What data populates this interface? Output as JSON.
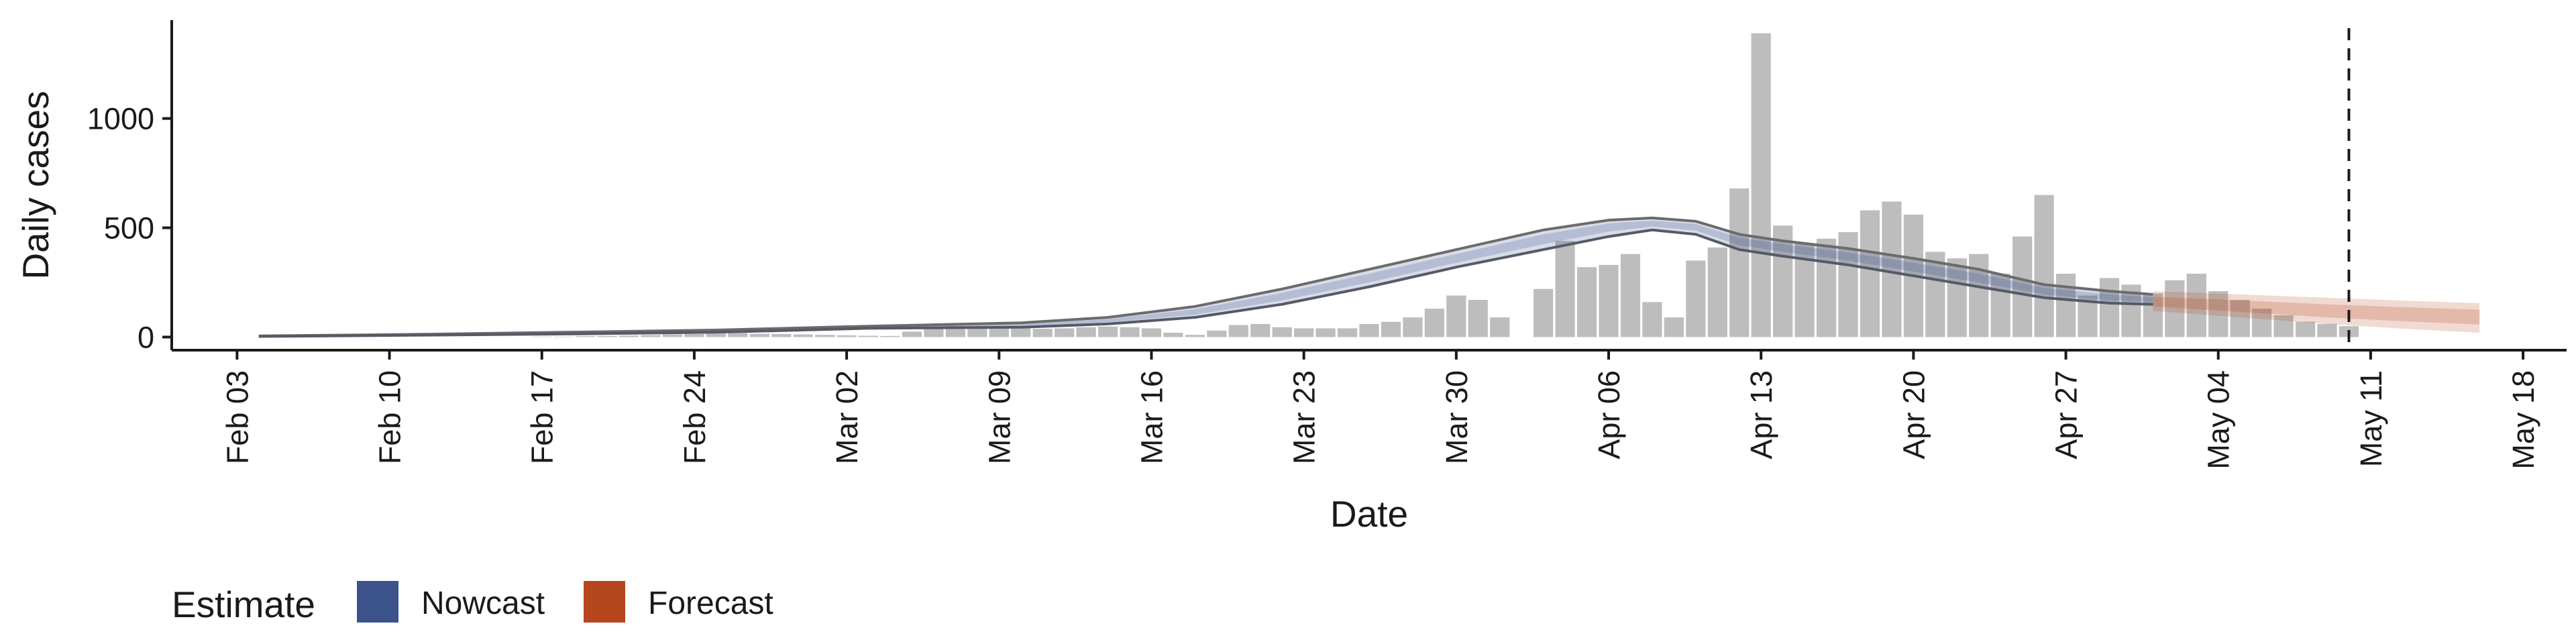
{
  "chart_data": {
    "type": "bar",
    "xlabel": "Date",
    "ylabel": "Daily cases",
    "x_axis": {
      "type": "date",
      "range": [
        "2020-01-31",
        "2020-05-20"
      ],
      "ticks": [
        {
          "date": "2020-02-03",
          "label": "Feb 03"
        },
        {
          "date": "2020-02-10",
          "label": "Feb 10"
        },
        {
          "date": "2020-02-17",
          "label": "Feb 17"
        },
        {
          "date": "2020-02-24",
          "label": "Feb 24"
        },
        {
          "date": "2020-03-02",
          "label": "Mar 02"
        },
        {
          "date": "2020-03-09",
          "label": "Mar 09"
        },
        {
          "date": "2020-03-16",
          "label": "Mar 16"
        },
        {
          "date": "2020-03-23",
          "label": "Mar 23"
        },
        {
          "date": "2020-03-30",
          "label": "Mar 30"
        },
        {
          "date": "2020-04-06",
          "label": "Apr 06"
        },
        {
          "date": "2020-04-13",
          "label": "Apr 13"
        },
        {
          "date": "2020-04-20",
          "label": "Apr 20"
        },
        {
          "date": "2020-04-27",
          "label": "Apr 27"
        },
        {
          "date": "2020-05-04",
          "label": "May 04"
        },
        {
          "date": "2020-05-11",
          "label": "May 11"
        },
        {
          "date": "2020-05-18",
          "label": "May 18"
        }
      ]
    },
    "y_axis": {
      "range": [
        -60,
        1450
      ],
      "ticks": [
        {
          "value": 0,
          "label": "0"
        },
        {
          "value": 500,
          "label": "500"
        },
        {
          "value": 1000,
          "label": "1000"
        }
      ]
    },
    "grid": false,
    "bars": {
      "name": "Daily cases",
      "color": "#bdbdbd",
      "dates": [
        "2020-02-01",
        "2020-02-02",
        "2020-02-03",
        "2020-02-04",
        "2020-02-05",
        "2020-02-06",
        "2020-02-07",
        "2020-02-08",
        "2020-02-09",
        "2020-02-10",
        "2020-02-11",
        "2020-02-12",
        "2020-02-13",
        "2020-02-14",
        "2020-02-15",
        "2020-02-16",
        "2020-02-17",
        "2020-02-18",
        "2020-02-19",
        "2020-02-20",
        "2020-02-21",
        "2020-02-22",
        "2020-02-23",
        "2020-02-24",
        "2020-02-25",
        "2020-02-26",
        "2020-02-27",
        "2020-02-28",
        "2020-02-29",
        "2020-03-01",
        "2020-03-02",
        "2020-03-03",
        "2020-03-04",
        "2020-03-05",
        "2020-03-06",
        "2020-03-07",
        "2020-03-08",
        "2020-03-09",
        "2020-03-10",
        "2020-03-11",
        "2020-03-12",
        "2020-03-13",
        "2020-03-14",
        "2020-03-15",
        "2020-03-16",
        "2020-03-17",
        "2020-03-18",
        "2020-03-19",
        "2020-03-20",
        "2020-03-21",
        "2020-03-22",
        "2020-03-23",
        "2020-03-24",
        "2020-03-25",
        "2020-03-26",
        "2020-03-27",
        "2020-03-28",
        "2020-03-29",
        "2020-03-30",
        "2020-03-31",
        "2020-04-01",
        "2020-04-02",
        "2020-04-03",
        "2020-04-04",
        "2020-04-05",
        "2020-04-06",
        "2020-04-07",
        "2020-04-08",
        "2020-04-09",
        "2020-04-10",
        "2020-04-11",
        "2020-04-12",
        "2020-04-13",
        "2020-04-14",
        "2020-04-15",
        "2020-04-16",
        "2020-04-17",
        "2020-04-18",
        "2020-04-19",
        "2020-04-20",
        "2020-04-21",
        "2020-04-22",
        "2020-04-23",
        "2020-04-24",
        "2020-04-25",
        "2020-04-26",
        "2020-04-27",
        "2020-04-28",
        "2020-04-29",
        "2020-04-30",
        "2020-05-01",
        "2020-05-02",
        "2020-05-03",
        "2020-05-04",
        "2020-05-05",
        "2020-05-06",
        "2020-05-07",
        "2020-05-08",
        "2020-05-09",
        "2020-05-10"
      ],
      "values": [
        0,
        0,
        0,
        0,
        0,
        0,
        0,
        0,
        0,
        0,
        0,
        0,
        0,
        0,
        0,
        0,
        2,
        2,
        4,
        5,
        7,
        9,
        12,
        14,
        16,
        18,
        15,
        14,
        12,
        10,
        8,
        6,
        5,
        25,
        40,
        50,
        48,
        45,
        40,
        38,
        40,
        45,
        48,
        45,
        40,
        20,
        10,
        30,
        55,
        60,
        45,
        40,
        40,
        40,
        60,
        70,
        90,
        130,
        190,
        170,
        90,
        0,
        220,
        440,
        320,
        330,
        380,
        160,
        90,
        350,
        410,
        680,
        1390,
        510,
        430,
        450,
        480,
        580,
        620,
        560,
        390,
        360,
        380,
        290,
        460,
        650,
        290,
        190,
        270,
        240,
        200,
        260,
        290,
        210,
        170,
        130,
        100,
        70,
        60,
        50
      ]
    },
    "series": [
      {
        "name": "Nowcast",
        "color": "#3b528b",
        "dates": [
          "2020-02-04",
          "2020-02-11",
          "2020-02-18",
          "2020-02-25",
          "2020-03-03",
          "2020-03-10",
          "2020-03-14",
          "2020-03-18",
          "2020-03-22",
          "2020-03-26",
          "2020-03-30",
          "2020-04-03",
          "2020-04-06",
          "2020-04-08",
          "2020-04-10",
          "2020-04-12",
          "2020-04-14",
          "2020-04-17",
          "2020-04-20",
          "2020-04-23",
          "2020-04-26",
          "2020-04-29",
          "2020-05-01"
        ],
        "lower": [
          3,
          8,
          14,
          22,
          40,
          45,
          60,
          90,
          150,
          230,
          320,
          400,
          460,
          490,
          470,
          400,
          370,
          330,
          280,
          230,
          180,
          155,
          150
        ],
        "median": [
          4,
          10,
          18,
          28,
          45,
          55,
          75,
          115,
          185,
          270,
          360,
          450,
          505,
          520,
          505,
          440,
          410,
          370,
          320,
          270,
          210,
          180,
          170
        ],
        "upper": [
          5,
          12,
          22,
          32,
          50,
          65,
          90,
          140,
          220,
          310,
          400,
          490,
          535,
          545,
          530,
          470,
          440,
          405,
          360,
          310,
          240,
          210,
          195
        ]
      },
      {
        "name": "Forecast",
        "color": "#b5461d",
        "dates": [
          "2020-05-01",
          "2020-05-05",
          "2020-05-09",
          "2020-05-13",
          "2020-05-16"
        ],
        "lower": [
          120,
          90,
          60,
          35,
          20
        ],
        "median": [
          160,
          140,
          120,
          105,
          95
        ],
        "upper": [
          210,
          195,
          180,
          165,
          155
        ]
      }
    ],
    "report_date": "2020-05-10",
    "legend": {
      "placement": "bottom-left",
      "title": "Estimate",
      "items": [
        {
          "label": "Nowcast",
          "color": "#3b528b"
        },
        {
          "label": "Forecast",
          "color": "#b5461d"
        }
      ]
    }
  }
}
